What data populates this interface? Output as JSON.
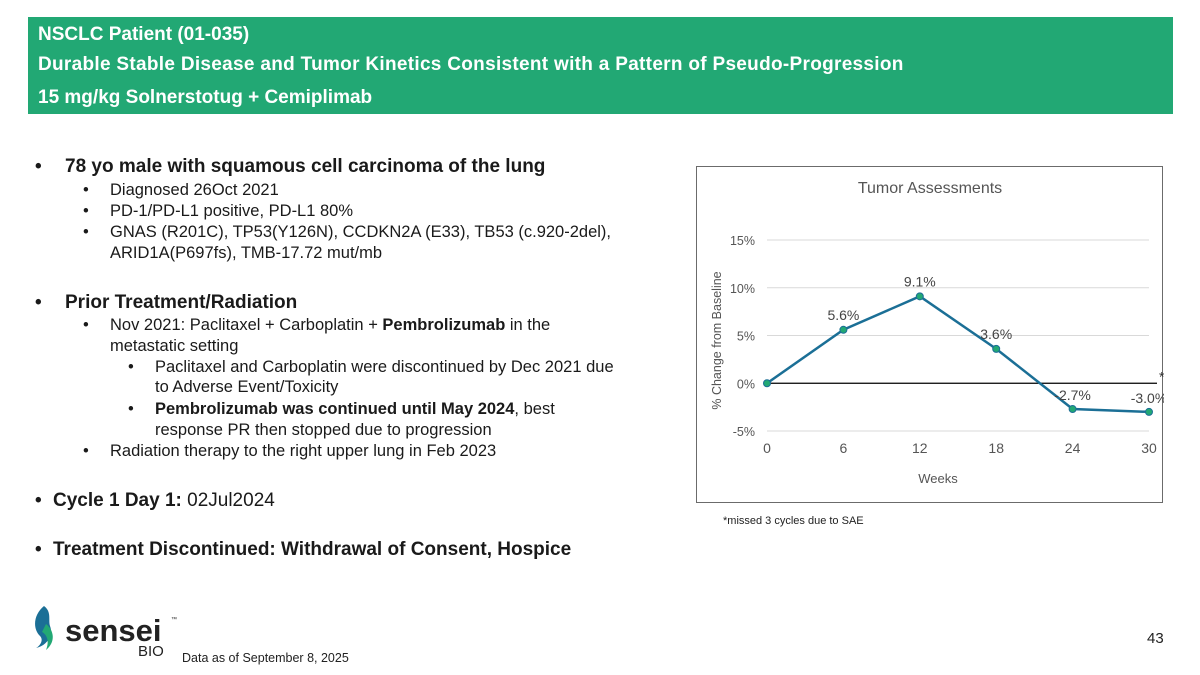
{
  "header": {
    "line1": "NSCLC Patient (01-035)",
    "line2": "Durable Stable Disease and Tumor Kinetics Consistent with a Pattern of Pseudo-Progression",
    "line3": "15 mg/kg Solnerstotug + Cemiplimab"
  },
  "bullets": {
    "b1": "78 yo male with squamous cell carcinoma of the lung",
    "b1_1": "Diagnosed 26Oct 2021",
    "b1_2": "PD-1/PD-L1 positive, PD-L1 80%",
    "b1_3a": "GNAS (R201C), TP53(Y126N), CCDKN2A (E33), TB53 (c.920-2del),",
    "b1_3b": "ARID1A(P697fs), TMB-17.72 mut/mb",
    "b2": "Prior Treatment/Radiation",
    "b2_1a_pre": "Nov 2021: Paclitaxel + Carboplatin + ",
    "b2_1a_bold": "Pembrolizumab",
    "b2_1a_post": " in the",
    "b2_1b": "metastatic setting",
    "b2_1_1a": "Paclitaxel and Carboplatin were discontinued by Dec 2021 due",
    "b2_1_1b": "to Adverse Event/Toxicity",
    "b2_1_2a_bold": "Pembrolizumab was continued until May 2024",
    "b2_1_2a_post": ", best",
    "b2_1_2b": "response PR then stopped due to progression",
    "b2_2": "Radiation therapy to the right upper lung in Feb 2023",
    "b3_label": "Cycle 1 Day 1:",
    "b3_value": " 02Jul2024",
    "b4": "Treatment Discontinued: Withdrawal of Consent, Hospice"
  },
  "chart_data": {
    "type": "line",
    "title": "Tumor Assessments",
    "xlabel": "Weeks",
    "ylabel": "% Change from Baseline",
    "x": [
      0,
      6,
      12,
      18,
      24,
      30
    ],
    "values": [
      0,
      5.6,
      9.1,
      3.6,
      -2.7,
      -3.0
    ],
    "data_labels": [
      "",
      "5.6%",
      "9.1%",
      "3.6%",
      "-2.7%",
      "-3.0%"
    ],
    "xticks": [
      "0",
      "6",
      "12",
      "18",
      "24",
      "30"
    ],
    "yticks": [
      "-5%",
      "0%",
      "5%",
      "10%",
      "15%"
    ],
    "ytick_values": [
      -5,
      0,
      5,
      10,
      15
    ],
    "xlim": [
      0,
      30
    ],
    "ylim": [
      -5,
      15
    ],
    "annotation": "*",
    "line_color": "#1b6f96",
    "marker_color": "#22a874",
    "grid": true
  },
  "footnote": "*missed 3 cycles due to SAE",
  "page_number": "43",
  "data_as_of": "Data as of September 8, 2025",
  "logo": {
    "brand": "sensei",
    "sub": "BIO",
    "tm": "™"
  },
  "colors": {
    "header_bg": "#22a874",
    "line": "#1b6f96",
    "marker": "#22a874"
  }
}
